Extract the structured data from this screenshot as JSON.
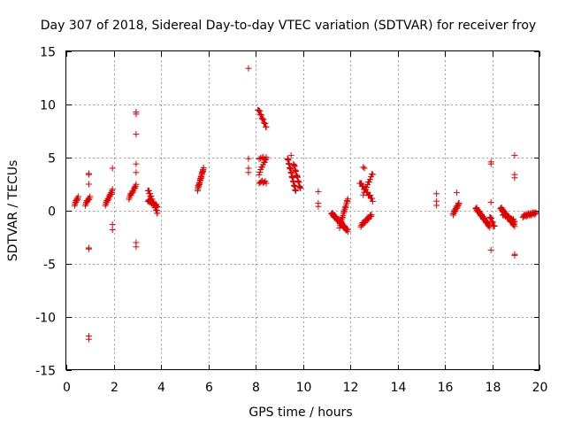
{
  "chart_data": {
    "type": "scatter",
    "title": "Day 307 of 2018, Sidereal Day-to-day VTEC variation (SDTVAR) for receiver froy",
    "xlabel": "GPS time / hours",
    "ylabel": "SDTVAR / TECUs",
    "xlim": [
      0,
      20
    ],
    "ylim": [
      -15,
      15
    ],
    "xticks": [
      "0",
      "2",
      "4",
      "6",
      "8",
      "10",
      "12",
      "14",
      "16",
      "18",
      "20"
    ],
    "yticks": [
      "15",
      "10",
      "5",
      "0",
      "-5",
      "-10",
      "-15"
    ],
    "grid": true,
    "marker": "plus",
    "color": "#e00000",
    "segments": [
      {
        "x0": 0.35,
        "x1": 0.5,
        "y0": 0.6,
        "y1": 1.3,
        "n": 10
      },
      {
        "x0": 0.8,
        "x1": 1.0,
        "y0": 0.6,
        "y1": 1.3,
        "n": 10
      },
      {
        "x0": 1.65,
        "x1": 1.95,
        "y0": 0.6,
        "y1": 1.9,
        "n": 18
      },
      {
        "x0": 2.65,
        "x1": 2.95,
        "y0": 1.2,
        "y1": 2.4,
        "n": 14
      },
      {
        "x0": 3.45,
        "x1": 3.85,
        "y0": 2.0,
        "y1": -0.2,
        "n": 30
      },
      {
        "x0": 3.45,
        "x1": 3.85,
        "y0": 1.0,
        "y1": 0.4,
        "n": 20
      },
      {
        "x0": 5.55,
        "x1": 5.8,
        "y0": 2.0,
        "y1": 4.0,
        "n": 24
      },
      {
        "x0": 8.1,
        "x1": 8.45,
        "y0": 9.6,
        "y1": 7.9,
        "n": 16
      },
      {
        "x0": 8.15,
        "x1": 8.45,
        "y0": 3.5,
        "y1": 5.0,
        "n": 10
      },
      {
        "x0": 8.15,
        "x1": 8.45,
        "y0": 2.7,
        "y1": 2.7,
        "n": 8
      },
      {
        "x0": 8.15,
        "x1": 8.45,
        "y0": 5.0,
        "y1": 4.9,
        "n": 6
      },
      {
        "x0": 9.35,
        "x1": 9.7,
        "y0": 5.0,
        "y1": 1.8,
        "n": 28
      },
      {
        "x0": 9.6,
        "x1": 9.9,
        "y0": 4.5,
        "y1": 2.0,
        "n": 18
      },
      {
        "x0": 11.2,
        "x1": 11.9,
        "y0": -0.2,
        "y1": -1.9,
        "n": 40
      },
      {
        "x0": 11.55,
        "x1": 11.9,
        "y0": -1.5,
        "y1": 1.1,
        "n": 20
      },
      {
        "x0": 12.4,
        "x1": 12.95,
        "y0": 2.7,
        "y1": 1.0,
        "n": 22
      },
      {
        "x0": 12.55,
        "x1": 12.95,
        "y0": 1.6,
        "y1": 3.5,
        "n": 12
      },
      {
        "x0": 12.45,
        "x1": 12.9,
        "y0": -1.4,
        "y1": -0.4,
        "n": 20
      },
      {
        "x0": 16.35,
        "x1": 16.6,
        "y0": -0.3,
        "y1": 0.7,
        "n": 20
      },
      {
        "x0": 17.3,
        "x1": 17.9,
        "y0": 0.3,
        "y1": -1.5,
        "n": 40
      },
      {
        "x0": 17.9,
        "x1": 18.1,
        "y0": -0.5,
        "y1": -1.5,
        "n": 10
      },
      {
        "x0": 18.35,
        "x1": 18.95,
        "y0": 0.3,
        "y1": -1.4,
        "n": 40
      },
      {
        "x0": 18.45,
        "x1": 18.95,
        "y0": -0.3,
        "y1": -1.0,
        "n": 20
      },
      {
        "x0": 19.3,
        "x1": 19.85,
        "y0": -0.5,
        "y1": -0.2,
        "n": 24
      }
    ],
    "points": [
      [
        0.95,
        3.5
      ],
      [
        0.95,
        3.4
      ],
      [
        0.95,
        2.5
      ],
      [
        0.95,
        -3.5
      ],
      [
        0.95,
        -3.6
      ],
      [
        0.95,
        -11.8
      ],
      [
        0.95,
        -12.1
      ],
      [
        1.95,
        4.0
      ],
      [
        1.95,
        -1.3
      ],
      [
        1.95,
        -1.8
      ],
      [
        2.95,
        9.3
      ],
      [
        2.95,
        9.1
      ],
      [
        2.95,
        7.2
      ],
      [
        2.95,
        4.4
      ],
      [
        2.95,
        3.6
      ],
      [
        2.95,
        -3.0
      ],
      [
        2.95,
        -3.4
      ],
      [
        7.7,
        13.4
      ],
      [
        7.7,
        4.9
      ],
      [
        7.7,
        4.0
      ],
      [
        7.7,
        3.6
      ],
      [
        10.65,
        1.8
      ],
      [
        10.65,
        0.7
      ],
      [
        10.65,
        0.4
      ],
      [
        15.65,
        1.6
      ],
      [
        15.65,
        0.9
      ],
      [
        15.65,
        0.5
      ],
      [
        16.5,
        1.7
      ],
      [
        17.95,
        4.6
      ],
      [
        17.95,
        4.4
      ],
      [
        17.95,
        0.8
      ],
      [
        17.95,
        -3.7
      ],
      [
        18.95,
        5.2
      ],
      [
        18.95,
        3.4
      ],
      [
        18.95,
        3.1
      ],
      [
        18.95,
        -4.1
      ],
      [
        18.95,
        -4.2
      ],
      [
        12.6,
        4.0
      ],
      [
        12.55,
        4.1
      ],
      [
        9.5,
        5.2
      ]
    ]
  }
}
